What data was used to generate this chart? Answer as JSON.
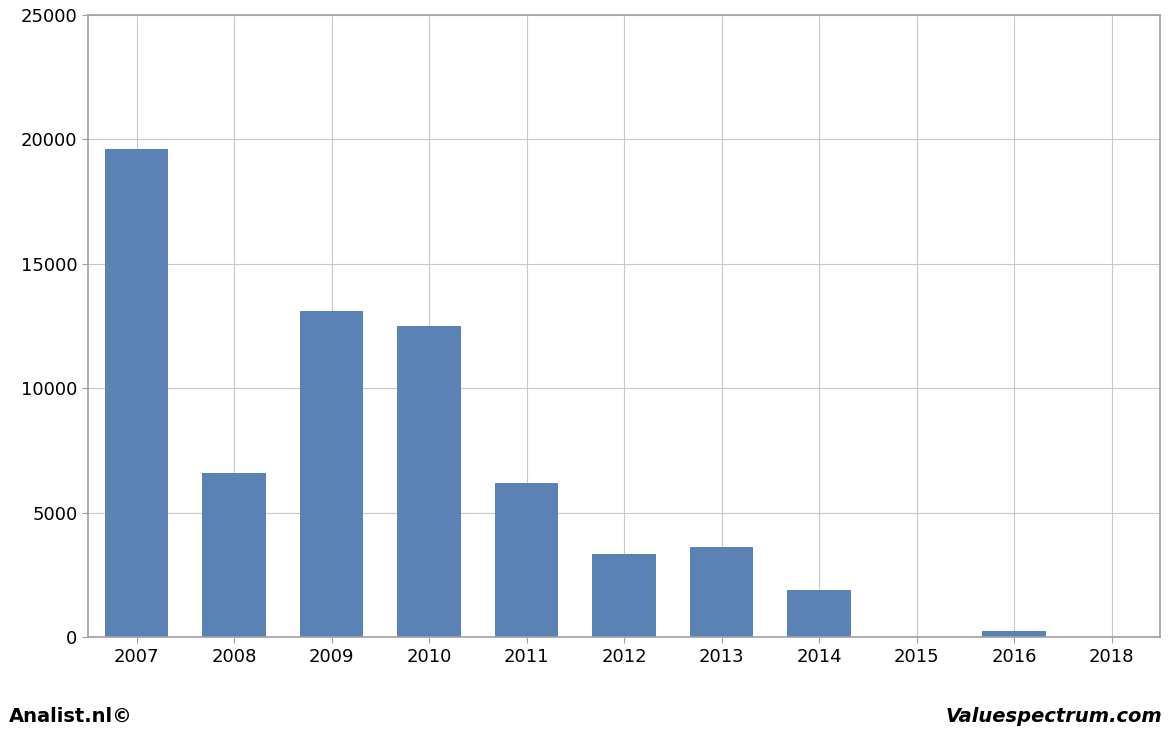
{
  "categories": [
    "2007",
    "2008",
    "2009",
    "2010",
    "2011",
    "2012",
    "2013",
    "2014",
    "2015",
    "2016",
    "2018"
  ],
  "values": [
    19600,
    6600,
    13100,
    12500,
    6200,
    3350,
    3600,
    1900,
    -100,
    250,
    0
  ],
  "bar_color": "#5b82b5",
  "ylim": [
    0,
    25000
  ],
  "yticks": [
    0,
    5000,
    10000,
    15000,
    20000,
    25000
  ],
  "background_color": "#ffffff",
  "plot_bg_color": "#ffffff",
  "footer_bg_color": "#d0d0d0",
  "footer_left": "Analist.nl©",
  "footer_right": "Valuespectrum.com",
  "grid_color": "#c8c8c8",
  "border_color": "#a0a0a0"
}
